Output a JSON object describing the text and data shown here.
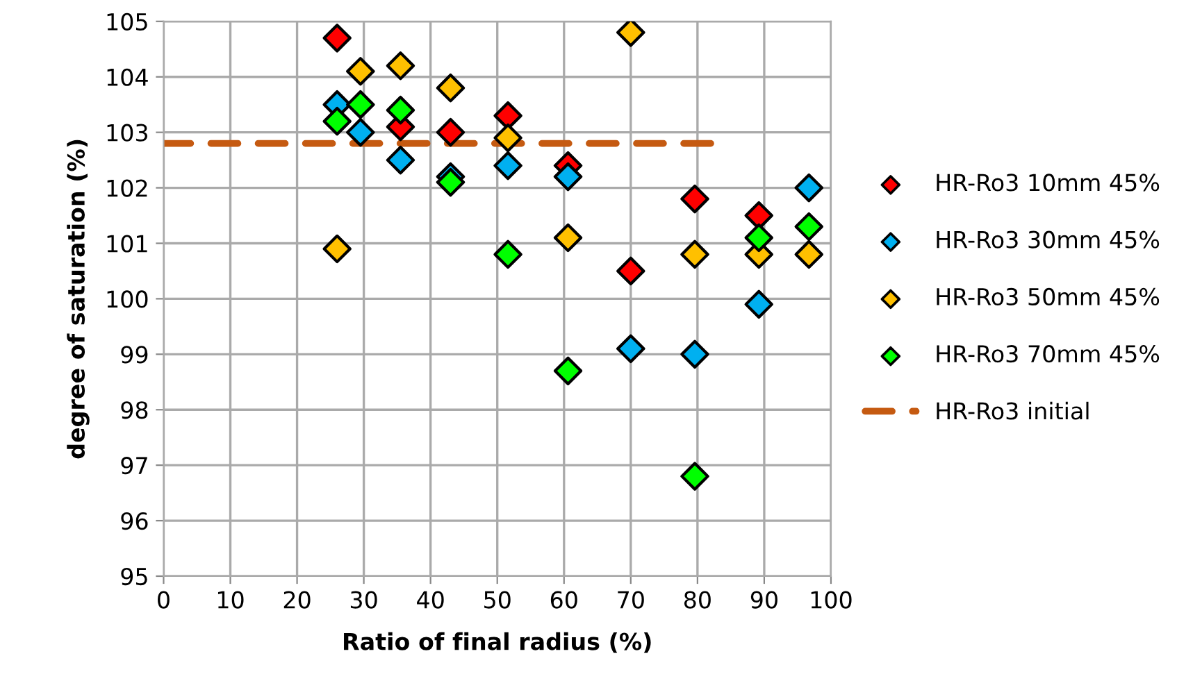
{
  "chart_data": {
    "type": "scatter",
    "xlabel": "Ratio of final radius (%)",
    "ylabel": "degree of saturation (%)",
    "xlim": [
      0,
      100
    ],
    "xticks": [
      0,
      10,
      20,
      30,
      40,
      50,
      60,
      70,
      80,
      90,
      100
    ],
    "ylim": [
      95,
      105
    ],
    "yticks": [
      95,
      96,
      97,
      98,
      99,
      100,
      101,
      102,
      103,
      104,
      105
    ],
    "grid": true,
    "legend": "right",
    "marker": "diamond",
    "series": [
      {
        "name": "HR-Ro3 10mm 45%",
        "color": "#ff0000",
        "x": [
          26.0,
          35.5,
          43.0,
          51.6,
          60.6,
          70.0,
          79.6,
          89.2
        ],
        "values": [
          104.7,
          103.1,
          103.0,
          103.3,
          102.4,
          100.5,
          101.8,
          101.5
        ]
      },
      {
        "name": "HR-Ro3 30mm 45%",
        "color": "#00b0f0",
        "x": [
          26.0,
          29.5,
          35.5,
          43.0,
          51.6,
          60.6,
          70.0,
          79.6,
          89.2,
          96.7
        ],
        "values": [
          103.5,
          103.0,
          102.5,
          102.2,
          102.4,
          102.2,
          99.1,
          99.0,
          99.9,
          102.0
        ]
      },
      {
        "name": "HR-Ro3 50mm 45%",
        "color": "#ffc000",
        "x": [
          26.0,
          29.5,
          35.5,
          43.0,
          51.6,
          60.6,
          70.0,
          79.6,
          89.2,
          96.7
        ],
        "values": [
          100.9,
          104.1,
          104.2,
          103.8,
          102.9,
          101.1,
          104.8,
          100.8,
          100.8,
          100.8
        ]
      },
      {
        "name": "HR-Ro3 70mm 45%",
        "color": "#00ff00",
        "x": [
          26.0,
          29.5,
          35.5,
          43.0,
          51.6,
          60.6,
          79.6,
          89.2,
          96.7
        ],
        "values": [
          103.2,
          103.5,
          103.4,
          102.1,
          100.8,
          98.7,
          96.8,
          101.1,
          101.3
        ]
      },
      {
        "name": "HR-Ro3 initial",
        "type": "line",
        "line_style": "dashed",
        "marker": "none",
        "color": "#c55a11",
        "x": [
          0,
          83
        ],
        "values": [
          102.8,
          102.8
        ]
      }
    ]
  }
}
